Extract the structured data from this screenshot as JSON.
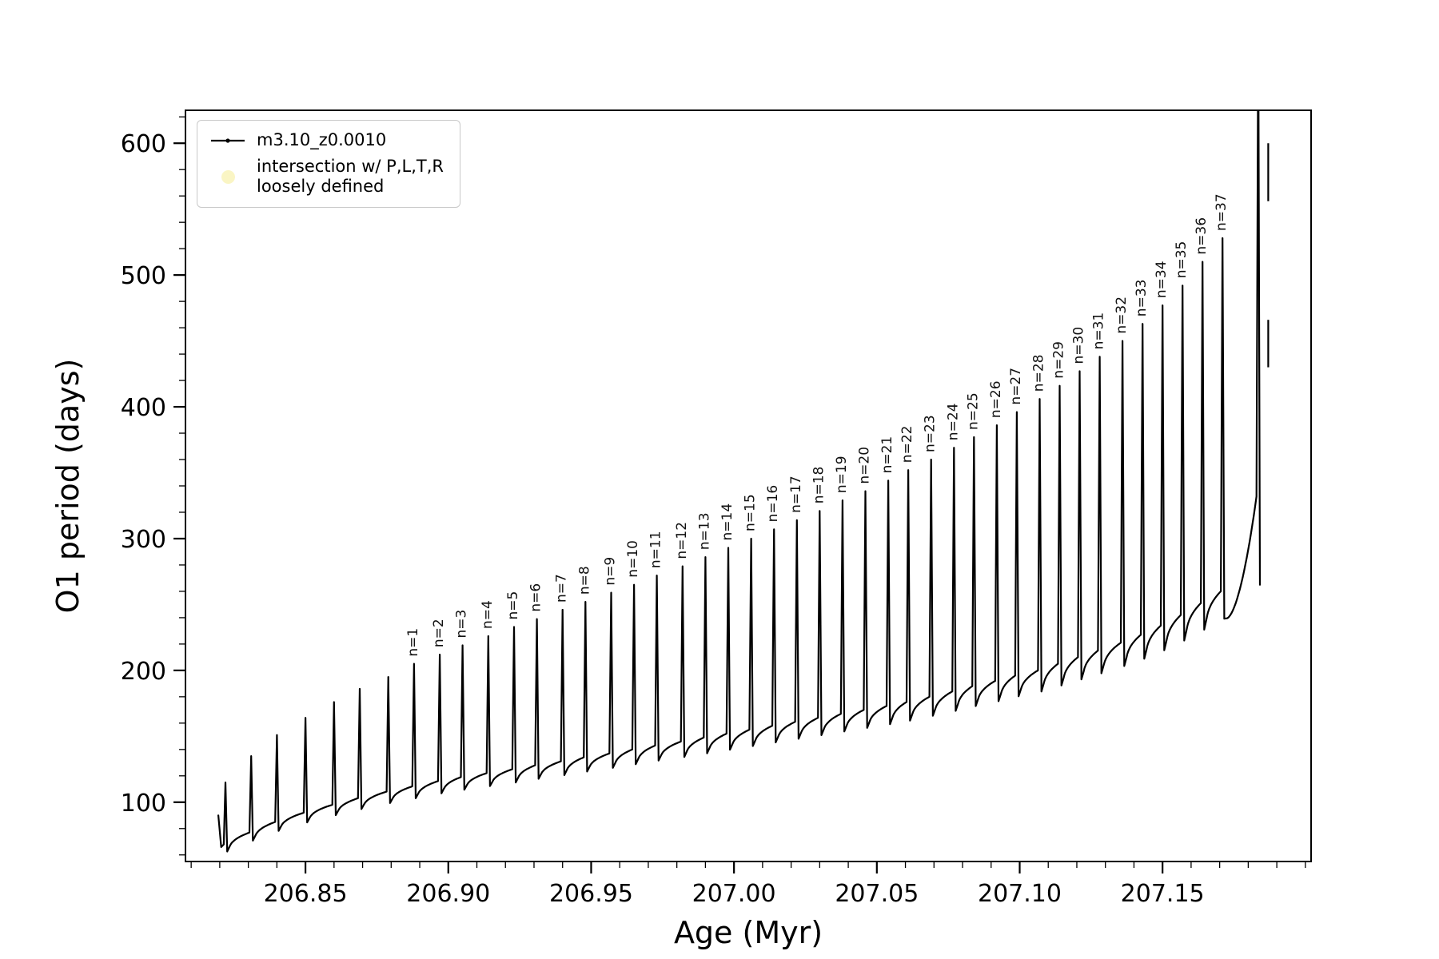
{
  "figure": {
    "background_color": "#ffffff"
  },
  "legend": {
    "series_label": "m3.10_z0.0010",
    "intersection_label_line1": "intersection w/ P,L,T,R",
    "intersection_label_line2": "loosely defined",
    "intersection_marker_color": "#faf5c4",
    "line_color": "#000000"
  },
  "chart_data": {
    "type": "line",
    "title": "",
    "xlabel": "Age (Myr)",
    "ylabel": "O1 period (days)",
    "series_name": "m3.10_z0.0010",
    "line_color": "#000000",
    "xlim": [
      206.808,
      207.202
    ],
    "ylim": [
      55,
      625
    ],
    "x_minor_step": 0.01,
    "y_minor_step": 20,
    "grid": false,
    "legend_position": "upper left",
    "x_major_ticks": [
      {
        "value": 206.85,
        "label": "206.85"
      },
      {
        "value": 206.9,
        "label": "206.90"
      },
      {
        "value": 206.95,
        "label": "206.95"
      },
      {
        "value": 207.0,
        "label": "207.00"
      },
      {
        "value": 207.05,
        "label": "207.05"
      },
      {
        "value": 207.1,
        "label": "207.10"
      },
      {
        "value": 207.15,
        "label": "207.15"
      }
    ],
    "y_major_ticks": [
      {
        "value": 100,
        "label": "100"
      },
      {
        "value": 200,
        "label": "200"
      },
      {
        "value": 300,
        "label": "300"
      },
      {
        "value": 400,
        "label": "400"
      },
      {
        "value": 500,
        "label": "500"
      },
      {
        "value": 600,
        "label": "600"
      }
    ],
    "lead_in_points": [
      [
        206.8195,
        90
      ],
      [
        206.8205,
        66
      ]
    ],
    "spikes": [
      {
        "age": 206.822,
        "peak": 115,
        "base": 68,
        "label": null
      },
      {
        "age": 206.831,
        "peak": 135,
        "base": 77,
        "label": null
      },
      {
        "age": 206.84,
        "peak": 151,
        "base": 85,
        "label": null
      },
      {
        "age": 206.85,
        "peak": 164,
        "base": 92,
        "label": null
      },
      {
        "age": 206.86,
        "peak": 176,
        "base": 98,
        "label": null
      },
      {
        "age": 206.869,
        "peak": 186,
        "base": 103,
        "label": null
      },
      {
        "age": 206.879,
        "peak": 195,
        "base": 108,
        "label": null
      },
      {
        "age": 206.888,
        "peak": 205,
        "base": 112,
        "label": "n=1"
      },
      {
        "age": 206.897,
        "peak": 212,
        "base": 116,
        "label": "n=2"
      },
      {
        "age": 206.905,
        "peak": 219,
        "base": 119,
        "label": "n=3"
      },
      {
        "age": 206.914,
        "peak": 226,
        "base": 122,
        "label": "n=4"
      },
      {
        "age": 206.923,
        "peak": 233,
        "base": 125,
        "label": "n=5"
      },
      {
        "age": 206.931,
        "peak": 239,
        "base": 128,
        "label": "n=6"
      },
      {
        "age": 206.94,
        "peak": 246,
        "base": 131,
        "label": "n=7"
      },
      {
        "age": 206.948,
        "peak": 252,
        "base": 134,
        "label": "n=8"
      },
      {
        "age": 206.957,
        "peak": 259,
        "base": 137,
        "label": "n=9"
      },
      {
        "age": 206.965,
        "peak": 265,
        "base": 140,
        "label": "n=10"
      },
      {
        "age": 206.973,
        "peak": 272,
        "base": 143,
        "label": "n=11"
      },
      {
        "age": 206.982,
        "peak": 279,
        "base": 146,
        "label": "n=12"
      },
      {
        "age": 206.99,
        "peak": 286,
        "base": 149,
        "label": "n=13"
      },
      {
        "age": 206.998,
        "peak": 293,
        "base": 152,
        "label": "n=14"
      },
      {
        "age": 207.006,
        "peak": 300,
        "base": 155,
        "label": "n=15"
      },
      {
        "age": 207.014,
        "peak": 307,
        "base": 158,
        "label": "n=16"
      },
      {
        "age": 207.022,
        "peak": 314,
        "base": 161,
        "label": "n=17"
      },
      {
        "age": 207.03,
        "peak": 321,
        "base": 164,
        "label": "n=18"
      },
      {
        "age": 207.038,
        "peak": 329,
        "base": 167,
        "label": "n=19"
      },
      {
        "age": 207.046,
        "peak": 336,
        "base": 170,
        "label": "n=20"
      },
      {
        "age": 207.054,
        "peak": 344,
        "base": 173,
        "label": "n=21"
      },
      {
        "age": 207.061,
        "peak": 352,
        "base": 176,
        "label": "n=22"
      },
      {
        "age": 207.069,
        "peak": 360,
        "base": 180,
        "label": "n=23"
      },
      {
        "age": 207.077,
        "peak": 369,
        "base": 184,
        "label": "n=24"
      },
      {
        "age": 207.084,
        "peak": 377,
        "base": 188,
        "label": "n=25"
      },
      {
        "age": 207.092,
        "peak": 386,
        "base": 192,
        "label": "n=26"
      },
      {
        "age": 207.099,
        "peak": 396,
        "base": 196,
        "label": "n=27"
      },
      {
        "age": 207.107,
        "peak": 406,
        "base": 200,
        "label": "n=28"
      },
      {
        "age": 207.114,
        "peak": 416,
        "base": 205,
        "label": "n=29"
      },
      {
        "age": 207.121,
        "peak": 427,
        "base": 210,
        "label": "n=30"
      },
      {
        "age": 207.128,
        "peak": 438,
        "base": 215,
        "label": "n=31"
      },
      {
        "age": 207.136,
        "peak": 450,
        "base": 221,
        "label": "n=32"
      },
      {
        "age": 207.143,
        "peak": 463,
        "base": 227,
        "label": "n=33"
      },
      {
        "age": 207.15,
        "peak": 477,
        "base": 234,
        "label": "n=34"
      },
      {
        "age": 207.157,
        "peak": 492,
        "base": 242,
        "label": "n=35"
      },
      {
        "age": 207.164,
        "peak": 510,
        "base": 251,
        "label": "n=36"
      },
      {
        "age": 207.171,
        "peak": 528,
        "base": 260,
        "label": "n=37"
      },
      {
        "age": 207.1835,
        "peak": 700,
        "base": 332,
        "dip": 265,
        "ramp_exp": 1.8,
        "label": null
      }
    ],
    "extra_segments": [
      {
        "age": 207.187,
        "y_from": 556,
        "y_to": 600
      },
      {
        "age": 207.187,
        "y_from": 430,
        "y_to": 466
      }
    ]
  }
}
